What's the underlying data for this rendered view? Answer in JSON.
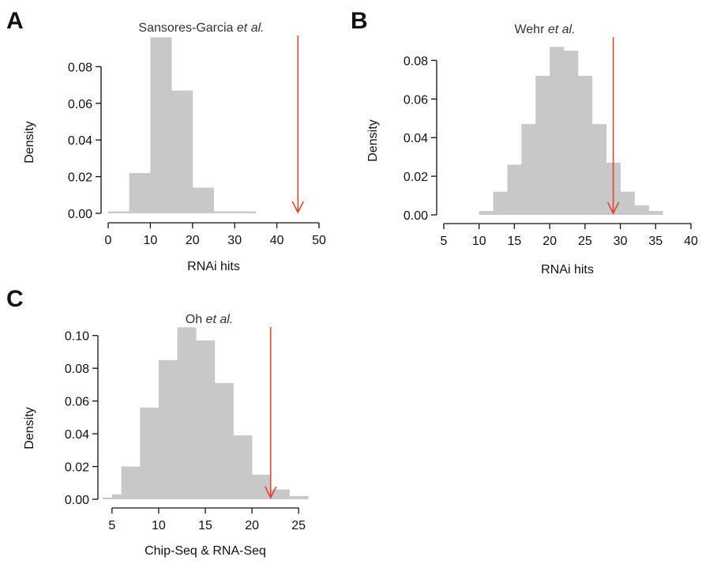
{
  "figure": {
    "colors": {
      "bar": "#c8c8c8",
      "axis": "#111111",
      "arrow": "#e0482a"
    },
    "panels": [
      {
        "letter": "A",
        "chart_data": {
          "type": "bar",
          "title": "Sansores-Garcia",
          "title_italic": "et al.",
          "xlabel": "RNAi hits",
          "ylabel": "Density",
          "xlim": [
            0,
            50
          ],
          "ylim": [
            0,
            0.1
          ],
          "xticks": [
            0,
            10,
            20,
            30,
            40,
            50
          ],
          "yticks": [
            0.0,
            0.02,
            0.04,
            0.06,
            0.08
          ],
          "ytick_labels": [
            "0.00",
            "0.02",
            "0.04",
            "0.06",
            "0.08"
          ],
          "bin_edges": [
            0,
            5,
            10,
            15,
            20,
            25,
            30,
            35
          ],
          "values": [
            0.001,
            0.022,
            0.096,
            0.067,
            0.014,
            0.001,
            0.001
          ],
          "arrow_x": 45
        }
      },
      {
        "letter": "B",
        "chart_data": {
          "type": "bar",
          "title": "Wehr",
          "title_italic": "et al.",
          "xlabel": "RNAi hits",
          "ylabel": "Density",
          "xlim": [
            5,
            40
          ],
          "ylim": [
            0,
            0.09
          ],
          "xticks": [
            5,
            10,
            15,
            20,
            25,
            30,
            35,
            40
          ],
          "yticks": [
            0.0,
            0.02,
            0.04,
            0.06,
            0.08
          ],
          "ytick_labels": [
            "0.00",
            "0.02",
            "0.04",
            "0.06",
            "0.08"
          ],
          "bin_edges": [
            10,
            12,
            14,
            16,
            18,
            20,
            22,
            24,
            26,
            28,
            30,
            32,
            34,
            36
          ],
          "values": [
            0.002,
            0.012,
            0.026,
            0.047,
            0.072,
            0.087,
            0.085,
            0.072,
            0.047,
            0.027,
            0.012,
            0.005,
            0.002
          ],
          "arrow_x": 29
        }
      },
      {
        "letter": "C",
        "chart_data": {
          "type": "bar",
          "title": "Oh",
          "title_italic": "et al.",
          "xlabel": "Chip-Seq & RNA-Seq",
          "ylabel": "Density",
          "xlim": [
            4,
            26
          ],
          "ylim": [
            0,
            0.11
          ],
          "xticks": [
            5,
            10,
            15,
            20,
            25
          ],
          "yticks": [
            0.0,
            0.02,
            0.04,
            0.06,
            0.08,
            0.1
          ],
          "ytick_labels": [
            "0.00",
            "0.02",
            "0.04",
            "0.06",
            "0.08",
            "0.10"
          ],
          "bin_edges": [
            4,
            5,
            6,
            7,
            8,
            9,
            10,
            11,
            12,
            13,
            14,
            15,
            16,
            17,
            18,
            19,
            20,
            21,
            22,
            23,
            24,
            25,
            26
          ],
          "values": [
            0.001,
            0.003,
            0.02,
            0.02,
            0.056,
            0.056,
            0.085,
            0.085,
            0.105,
            0.105,
            0.097,
            0.097,
            0.071,
            0.071,
            0.039,
            0.039,
            0.015,
            0.015,
            0.006,
            0.006,
            0.002,
            0.002
          ],
          "arrow_x": 22
        }
      }
    ]
  }
}
